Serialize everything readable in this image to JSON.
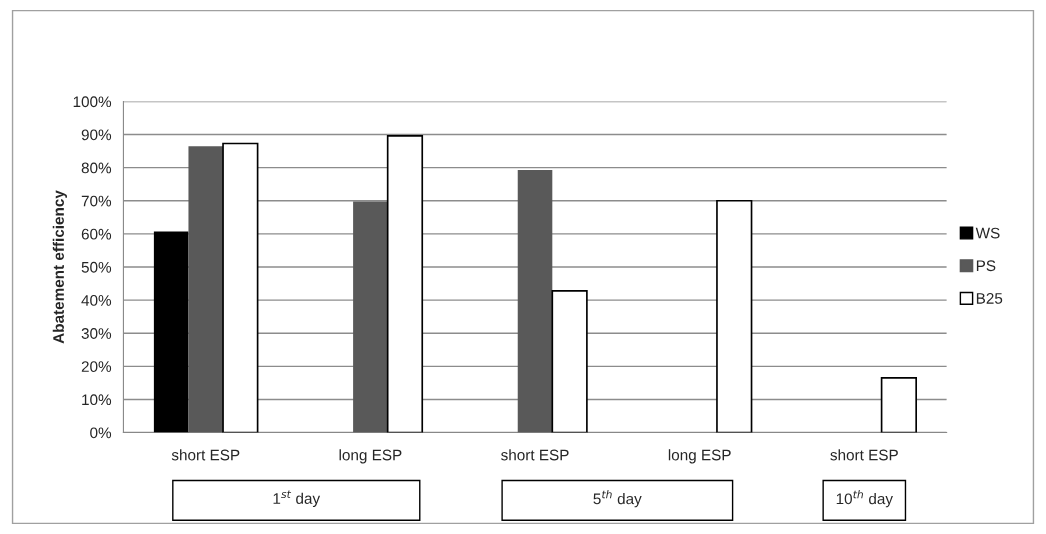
{
  "chart_data": {
    "type": "bar",
    "ylabel": "Abatement efficiency",
    "categories": [
      "short ESP",
      "long ESP",
      "short ESP",
      "long ESP",
      "short ESP"
    ],
    "series": [
      {
        "name": "WS",
        "color": "#000000",
        "values": [
          60.7,
          null,
          null,
          null,
          null
        ]
      },
      {
        "name": "PS",
        "color": "#595959",
        "values": [
          86.5,
          69.8,
          79.3,
          null,
          null
        ]
      },
      {
        "name": "B25",
        "color": "#ffffff",
        "values": [
          87.3,
          89.6,
          42.8,
          70,
          16.5
        ]
      }
    ],
    "ylim": [
      0,
      100
    ],
    "yticks": [
      {
        "value": 0,
        "label": "0%"
      },
      {
        "value": 10,
        "label": "10%"
      },
      {
        "value": 20,
        "label": "20%"
      },
      {
        "value": 30,
        "label": "30%"
      },
      {
        "value": 40,
        "label": "40%"
      },
      {
        "value": 50,
        "label": "50%"
      },
      {
        "value": 60,
        "label": "60%"
      },
      {
        "value": 70,
        "label": "70%"
      },
      {
        "value": 80,
        "label": "80%"
      },
      {
        "value": 90,
        "label": "90%"
      },
      {
        "value": 100,
        "label": "100%"
      }
    ],
    "grid": "y",
    "legend": "right",
    "annotations": [
      "1$^{st}$ day",
      "5$^{th}$ day",
      "10$^{th}$ day"
    ]
  }
}
